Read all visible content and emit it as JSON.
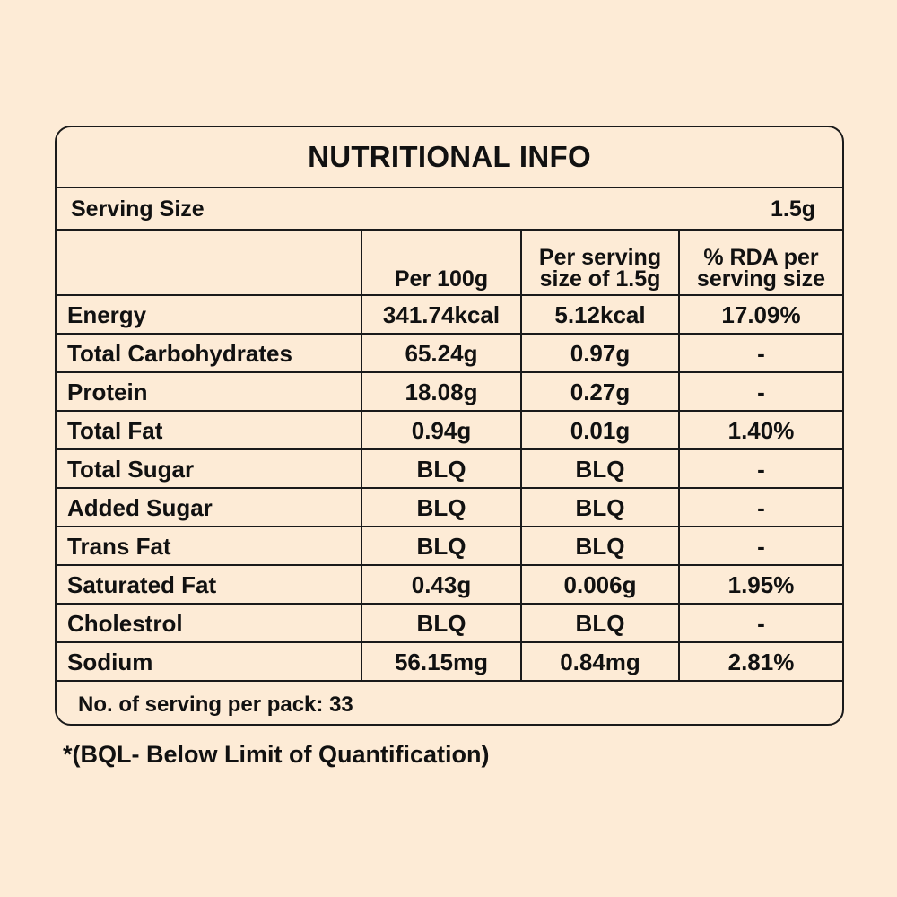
{
  "title": "NUTRITIONAL INFO",
  "serving_size": {
    "label": "Serving Size",
    "value": "1.5g"
  },
  "columns": [
    "",
    "Per 100g",
    "Per serving size of 1.5g",
    "% RDA per serving size"
  ],
  "column_lines": {
    "per_serving": [
      "Per serving",
      "size of 1.5g"
    ],
    "rda": [
      "% RDA per",
      "serving size"
    ]
  },
  "rows": [
    {
      "name": "Energy",
      "per100": "341.74kcal",
      "per_serving": "5.12kcal",
      "rda": "17.09%"
    },
    {
      "name": "Total Carbohydrates",
      "per100": "65.24g",
      "per_serving": "0.97g",
      "rda": "-"
    },
    {
      "name": "Protein",
      "per100": "18.08g",
      "per_serving": "0.27g",
      "rda": "-"
    },
    {
      "name": "Total Fat",
      "per100": "0.94g",
      "per_serving": "0.01g",
      "rda": "1.40%"
    },
    {
      "name": "Total Sugar",
      "per100": "BLQ",
      "per_serving": "BLQ",
      "rda": "-"
    },
    {
      "name": "Added Sugar",
      "per100": "BLQ",
      "per_serving": "BLQ",
      "rda": "-"
    },
    {
      "name": "Trans Fat",
      "per100": "BLQ",
      "per_serving": "BLQ",
      "rda": "-"
    },
    {
      "name": "Saturated Fat",
      "per100": "0.43g",
      "per_serving": "0.006g",
      "rda": "1.95%"
    },
    {
      "name": "Cholestrol",
      "per100": "BLQ",
      "per_serving": "BLQ",
      "rda": "-"
    },
    {
      "name": "Sodium",
      "per100": "56.15mg",
      "per_serving": "0.84mg",
      "rda": "2.81%"
    }
  ],
  "footer": "No. of serving per pack: 33",
  "note": "*(BQL- Below Limit of Quantification)",
  "colors": {
    "background": "#fdebd6",
    "border": "#1a1a1a",
    "text": "#111111"
  }
}
